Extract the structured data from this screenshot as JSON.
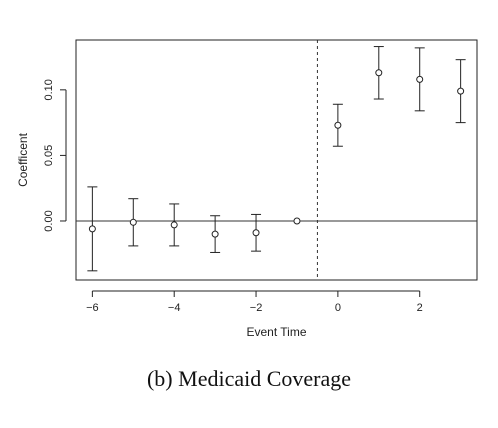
{
  "chart_data": {
    "type": "scatter",
    "xlabel": "Event Time",
    "ylabel": "Coefficent",
    "xlim": [
      -6.4,
      3.4
    ],
    "ylim": [
      -0.045,
      0.138
    ],
    "xticks": [
      -6,
      -4,
      -2,
      0,
      2
    ],
    "xtick_labels": [
      "−6",
      "−4",
      "−2",
      "0",
      "2"
    ],
    "yticks": [
      0.0,
      0.05,
      0.1
    ],
    "ytick_labels": [
      "0.00",
      "0.05",
      "0.10"
    ],
    "reference_line_y": 0,
    "event_line_x": -0.5,
    "points": [
      {
        "x": -6,
        "y": -0.006,
        "lo": -0.038,
        "hi": 0.026
      },
      {
        "x": -5,
        "y": -0.001,
        "lo": -0.019,
        "hi": 0.017
      },
      {
        "x": -4,
        "y": -0.003,
        "lo": -0.019,
        "hi": 0.013
      },
      {
        "x": -3,
        "y": -0.01,
        "lo": -0.024,
        "hi": 0.004
      },
      {
        "x": -2,
        "y": -0.009,
        "lo": -0.023,
        "hi": 0.005
      },
      {
        "x": -1,
        "y": 0.0,
        "lo": null,
        "hi": null
      },
      {
        "x": 0,
        "y": 0.073,
        "lo": 0.057,
        "hi": 0.089
      },
      {
        "x": 1,
        "y": 0.113,
        "lo": 0.093,
        "hi": 0.133
      },
      {
        "x": 2,
        "y": 0.108,
        "lo": 0.084,
        "hi": 0.132
      },
      {
        "x": 3,
        "y": 0.099,
        "lo": 0.075,
        "hi": 0.123
      }
    ]
  },
  "caption": "(b) Medicaid Coverage"
}
